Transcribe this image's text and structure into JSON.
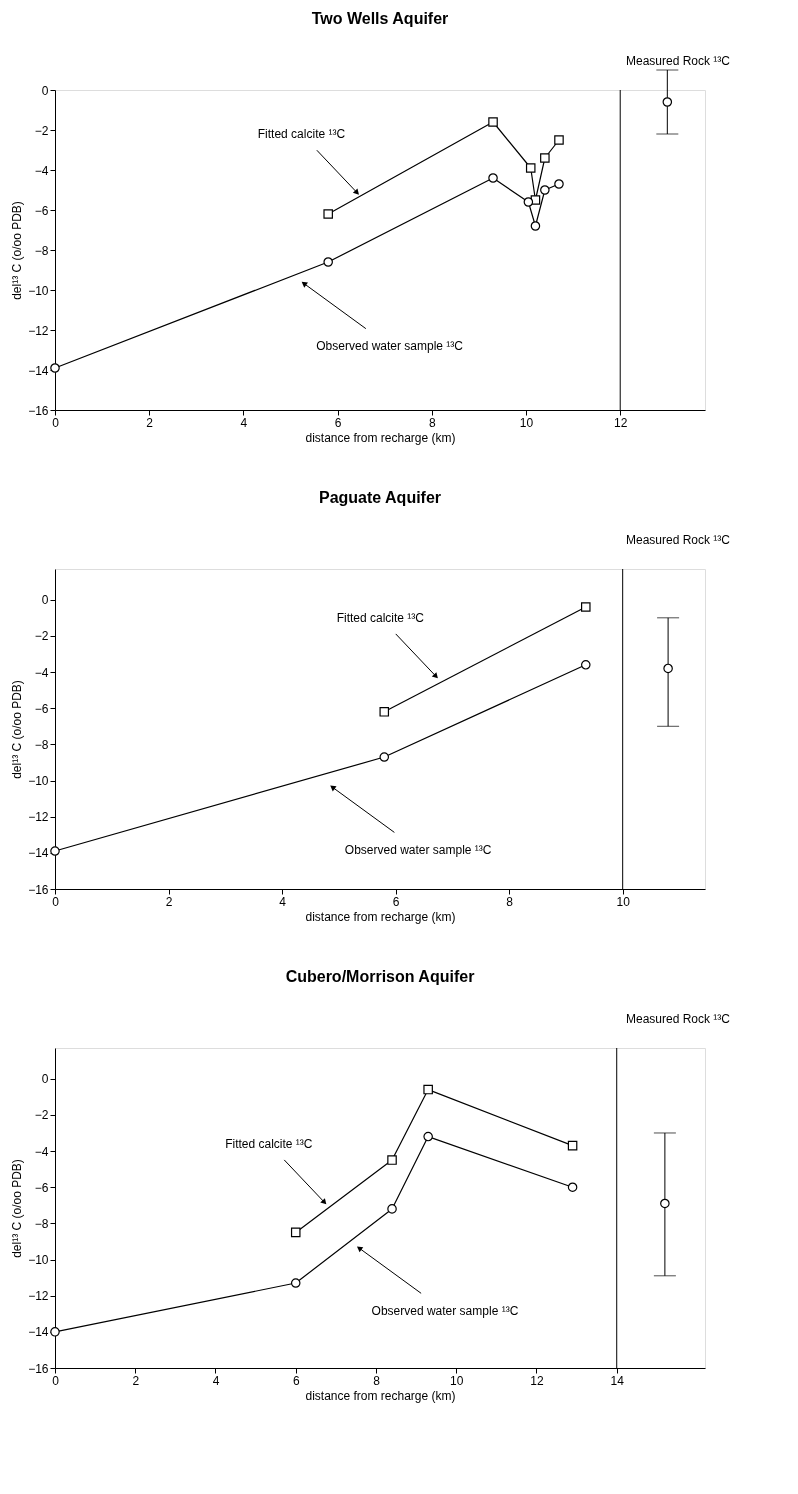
{
  "chart_data": [
    {
      "type": "line",
      "title": "Two Wells Aquifer",
      "xlabel": "distance from recharge (km)",
      "ylabel": "del¹³ C (o/oo PDB)",
      "xlim": [
        0,
        13.8
      ],
      "ylim": [
        -16,
        0
      ],
      "xticks": [
        0,
        2,
        4,
        6,
        8,
        10,
        12
      ],
      "yticks": [
        -16,
        -14,
        -12,
        -10,
        -8,
        -6,
        -4,
        -2,
        0
      ],
      "grid": false,
      "series": [
        {
          "color": "#000000",
          "marker": "square",
          "x": [
            5.8,
            9.3,
            10.1,
            10.2,
            10.4,
            10.7
          ],
          "values": [
            -6.2,
            -1.6,
            -3.9,
            -5.5,
            -3.4,
            -2.5
          ]
        },
        {
          "color": "#000000",
          "marker": "circle",
          "x": [
            0,
            5.8,
            9.3,
            10.05,
            10.2,
            10.4,
            10.7
          ],
          "values": [
            -13.9,
            -8.6,
            -4.4,
            -5.6,
            -6.8,
            -5.0,
            -4.7
          ]
        },
        {
          "type": "scatter",
          "color": "#000000",
          "marker": "circle",
          "x": [
            13.0
          ],
          "values": [
            -0.6
          ],
          "errors": [
            [
              -2.2,
              1.0
            ]
          ]
        }
      ],
      "ref_lines": [
        {
          "axis": "x",
          "value": 12
        }
      ],
      "annotations": [
        {
          "text": "Fitted calcite ¹³C",
          "x": 6.4,
          "y": -5.1
        },
        {
          "text": "Observed water sample ¹³C",
          "x": 5.3,
          "y": -9.7
        },
        "Measured Rock ¹³C"
      ]
    },
    {
      "type": "line",
      "title": "Paguate Aquifer",
      "xlabel": "distance from recharge (km)",
      "ylabel": "del¹³ C (o/oo PDB)",
      "xlim": [
        0,
        11.45
      ],
      "ylim": [
        -16,
        1.7
      ],
      "xticks": [
        0,
        2,
        4,
        6,
        8,
        10
      ],
      "yticks": [
        -16,
        -14,
        -12,
        -10,
        -8,
        -6,
        -4,
        -2,
        0
      ],
      "grid": false,
      "series": [
        {
          "color": "#000000",
          "marker": "square",
          "x": [
            5.8,
            9.35
          ],
          "values": [
            -6.2,
            -0.4
          ]
        },
        {
          "color": "#000000",
          "marker": "circle",
          "x": [
            0,
            5.8,
            9.35
          ],
          "values": [
            -13.9,
            -8.7,
            -3.6
          ]
        },
        {
          "type": "scatter",
          "color": "#000000",
          "marker": "circle",
          "x": [
            10.8
          ],
          "values": [
            -3.8
          ],
          "errors": [
            [
              -7.0,
              -1.0
            ]
          ]
        }
      ],
      "ref_lines": [
        {
          "axis": "x",
          "value": 10
        }
      ],
      "annotations": [
        {
          "text": "Fitted calcite ¹³C",
          "x": 6.7,
          "y": -4.2
        },
        {
          "text": "Observed water sample ¹³C",
          "x": 4.9,
          "y": -10.4
        },
        "Measured Rock ¹³C"
      ]
    },
    {
      "type": "line",
      "title": "Cubero/Morrison Aquifer",
      "xlabel": "distance from recharge (km)",
      "ylabel": "del¹³ C (o/oo PDB)",
      "xlim": [
        0,
        16.2
      ],
      "ylim": [
        -16,
        1.7
      ],
      "xticks": [
        0,
        2,
        4,
        6,
        8,
        10,
        12,
        14
      ],
      "yticks": [
        -16,
        -14,
        -12,
        -10,
        -8,
        -6,
        -4,
        -2,
        0
      ],
      "grid": false,
      "series": [
        {
          "color": "#000000",
          "marker": "square",
          "x": [
            6.0,
            8.4,
            9.3,
            12.9
          ],
          "values": [
            -8.5,
            -4.5,
            -0.6,
            -3.7
          ]
        },
        {
          "color": "#000000",
          "marker": "circle",
          "x": [
            0,
            6.0,
            8.4,
            9.3,
            12.9
          ],
          "values": [
            -14.0,
            -11.3,
            -7.2,
            -3.2,
            -6.0
          ]
        },
        {
          "type": "scatter",
          "color": "#000000",
          "marker": "circle",
          "x": [
            15.2
          ],
          "values": [
            -6.9
          ],
          "errors": [
            [
              -10.9,
              -3.0
            ]
          ]
        }
      ],
      "ref_lines": [
        {
          "axis": "x",
          "value": 14
        }
      ],
      "annotations": [
        {
          "text": "Fitted calcite ¹³C",
          "x": 6.7,
          "y": -6.8
        },
        {
          "text": "Observed water sample ¹³C",
          "x": 7.6,
          "y": -9.4
        },
        "Measured Rock ¹³C"
      ]
    }
  ]
}
